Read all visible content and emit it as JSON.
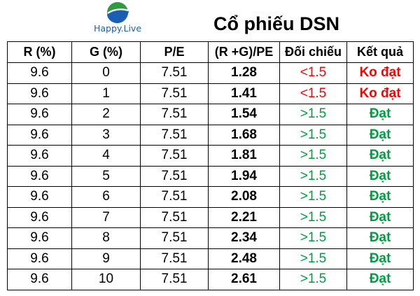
{
  "brand": {
    "logo_text": "Happy.Live",
    "logo_icon": "globe-swoosh-icon",
    "colors": {
      "green": "#2e9b3e",
      "blue": "#1a5fb4"
    }
  },
  "title": "Cổ phiếu DSN",
  "table": {
    "headers": [
      "R (%)",
      "G (%)",
      "P/E",
      "(R +G)/PE",
      "Đối chiếu",
      "Kết quả"
    ],
    "rows": [
      [
        "9.6",
        "0",
        "7.51",
        "1.28",
        "<1.5",
        "Ko đạt"
      ],
      [
        "9.6",
        "1",
        "7.51",
        "1.41",
        "<1.5",
        "Ko đạt"
      ],
      [
        "9.6",
        "2",
        "7.51",
        "1.54",
        ">1.5",
        "Đạt"
      ],
      [
        "9.6",
        "3",
        "7.51",
        "1.68",
        ">1.5",
        "Đạt"
      ],
      [
        "9.6",
        "4",
        "7.51",
        "1.81",
        ">1.5",
        "Đạt"
      ],
      [
        "9.6",
        "5",
        "7.51",
        "1.94",
        ">1.5",
        "Đạt"
      ],
      [
        "9.6",
        "6",
        "7.51",
        "2.08",
        ">1.5",
        "Đạt"
      ],
      [
        "9.6",
        "7",
        "7.51",
        "2.21",
        ">1.5",
        "Đạt"
      ],
      [
        "9.6",
        "8",
        "7.51",
        "2.34",
        ">1.5",
        "Đạt"
      ],
      [
        "9.6",
        "9",
        "7.51",
        "2.48",
        ">1.5",
        "Đạt"
      ],
      [
        "9.6",
        "10",
        "7.51",
        "2.61",
        ">1.5",
        "Đạt"
      ]
    ],
    "status_colors": {
      "fail": "#ff0000",
      "pass": "#00a040"
    }
  }
}
